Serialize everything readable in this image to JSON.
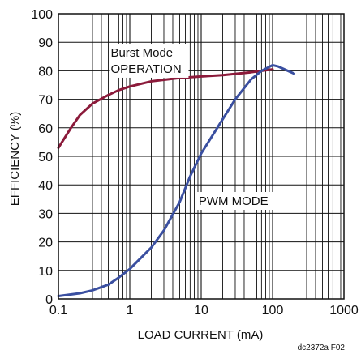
{
  "chart_data": {
    "type": "line",
    "xlabel": "LOAD CURRENT (mA)",
    "ylabel": "EFFICIENCY (%)",
    "x_scale": "log",
    "xlim": [
      0.1,
      1000
    ],
    "ylim": [
      0,
      100
    ],
    "x_ticks": [
      "0.1",
      "1",
      "10",
      "100",
      "1000"
    ],
    "y_ticks": [
      "0",
      "10",
      "20",
      "30",
      "40",
      "50",
      "60",
      "70",
      "80",
      "90",
      "100"
    ],
    "grid": true,
    "series": [
      {
        "name": "Burst Mode OPERATION",
        "color": "#8b1a3a",
        "points": [
          [
            0.1,
            53
          ],
          [
            0.15,
            60
          ],
          [
            0.2,
            64.5
          ],
          [
            0.3,
            68.5
          ],
          [
            0.5,
            71.5
          ],
          [
            0.7,
            73.2
          ],
          [
            1,
            74.5
          ],
          [
            2,
            76.3
          ],
          [
            5,
            77.5
          ],
          [
            10,
            78
          ],
          [
            20,
            78.5
          ],
          [
            50,
            79.5
          ],
          [
            100,
            80.5
          ]
        ]
      },
      {
        "name": "PWM MODE",
        "color": "#3a4fa0",
        "points": [
          [
            0.1,
            1
          ],
          [
            0.2,
            2
          ],
          [
            0.3,
            3
          ],
          [
            0.5,
            5
          ],
          [
            0.7,
            7.5
          ],
          [
            1,
            10.5
          ],
          [
            2,
            18
          ],
          [
            3,
            24
          ],
          [
            5,
            34
          ],
          [
            7,
            43
          ],
          [
            10,
            51
          ],
          [
            20,
            63
          ],
          [
            30,
            70
          ],
          [
            50,
            77
          ],
          [
            70,
            80
          ],
          [
            100,
            82
          ],
          [
            120,
            81.5
          ],
          [
            200,
            79
          ]
        ]
      }
    ],
    "annotations": [
      {
        "lines": [
          "Burst Mode",
          "OPERATION"
        ]
      },
      {
        "lines": [
          "PWM MODE"
        ]
      }
    ],
    "figure_code": "dc2372a F02"
  }
}
